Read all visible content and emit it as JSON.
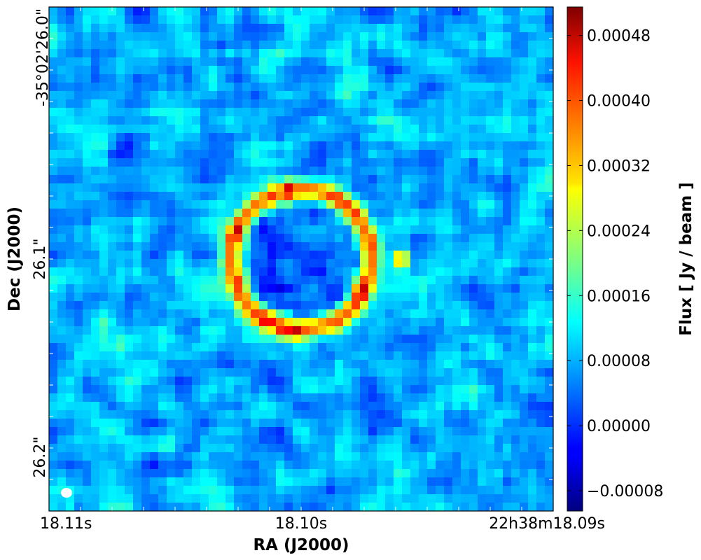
{
  "chart_data": {
    "type": "heatmap",
    "title": "",
    "xlabel": "RA (J2000)",
    "ylabel": "Dec (J2000)",
    "x_ticks": [
      "18.11s",
      "18.10s",
      "22h38m18.09s"
    ],
    "y_ticks": [
      "-35°02'26.0\"",
      "26.1\"",
      "26.2\""
    ],
    "colorbar": {
      "label": "Flux [ Jy / beam ]",
      "range": [
        -0.000105,
        0.000515
      ],
      "ticks": [
        -8e-05,
        0.0,
        8e-05,
        0.00016,
        0.00024,
        0.00032,
        0.0004,
        0.00048
      ],
      "tick_labels": [
        "−0.00008",
        "0.00000",
        "0.00008",
        "0.00016",
        "0.00024",
        "0.00032",
        "0.00040",
        "0.00048"
      ],
      "colormap": "jet"
    },
    "features": {
      "background_flux_mean": 8e-05,
      "background_flux_rms": 6e-05,
      "ring_peak_flux": 0.00047,
      "ring_description": "Einstein ring",
      "beam_marker": "white ellipse, lower-left"
    },
    "grid": false
  }
}
